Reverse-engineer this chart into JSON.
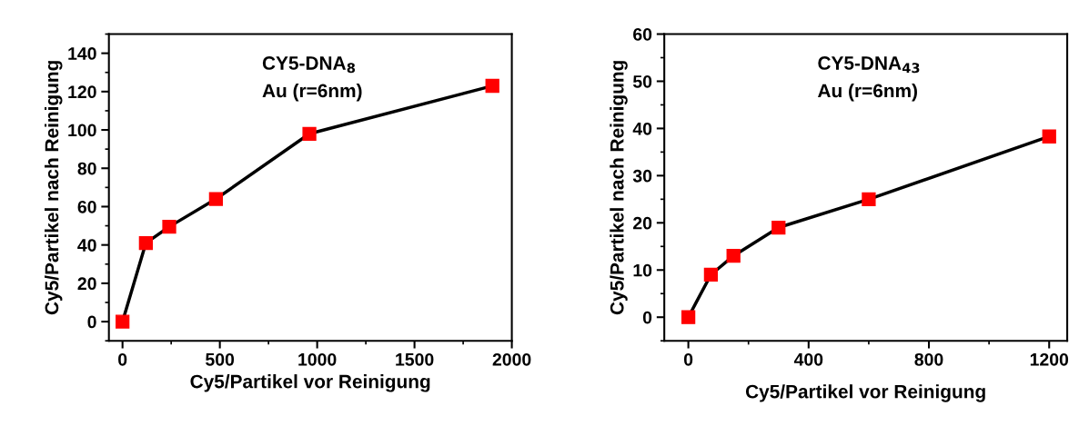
{
  "chart_data": [
    {
      "type": "line",
      "xlabel": "Cy5/Partikel vor Reinigung",
      "ylabel": "Cy5/Partikel nach Reinigung",
      "annotations": [
        "CY5-DNA$_{8}$",
        "Au (r=6nm)"
      ],
      "x": [
        0,
        120,
        240,
        480,
        960,
        1900
      ],
      "series": [
        {
          "color": "#000000",
          "values": [
            0,
            41,
            49.5,
            64,
            98,
            123
          ]
        }
      ],
      "marker": "square",
      "line_style": "solid",
      "xlim": [
        -70,
        2000
      ],
      "xticks": [
        0,
        500,
        1000,
        1500,
        2000
      ],
      "ylim": [
        -10,
        150
      ],
      "yticks": [
        0,
        20,
        40,
        60,
        80,
        100,
        120,
        140
      ],
      "grid": false,
      "legend": false
    },
    {
      "type": "line",
      "xlabel": "Cy5/Partikel vor Reinigung",
      "ylabel": "Cy5/Partikel nach Reinigung",
      "annotations": [
        "CY5-DNA$_{43}$",
        "Au (r=6nm)"
      ],
      "x": [
        0,
        75,
        150,
        300,
        600,
        1200
      ],
      "series": [
        {
          "color": "#000000",
          "values": [
            0,
            9,
            13,
            19,
            25,
            38.3
          ]
        }
      ],
      "marker": "square",
      "line_style": "solid",
      "xlim": [
        -80,
        1260
      ],
      "xticks": [
        0,
        400,
        800,
        1200
      ],
      "ylim": [
        -5,
        60
      ],
      "yticks": [
        0,
        10,
        20,
        30,
        40,
        50,
        60
      ],
      "grid": false,
      "legend": false
    }
  ]
}
